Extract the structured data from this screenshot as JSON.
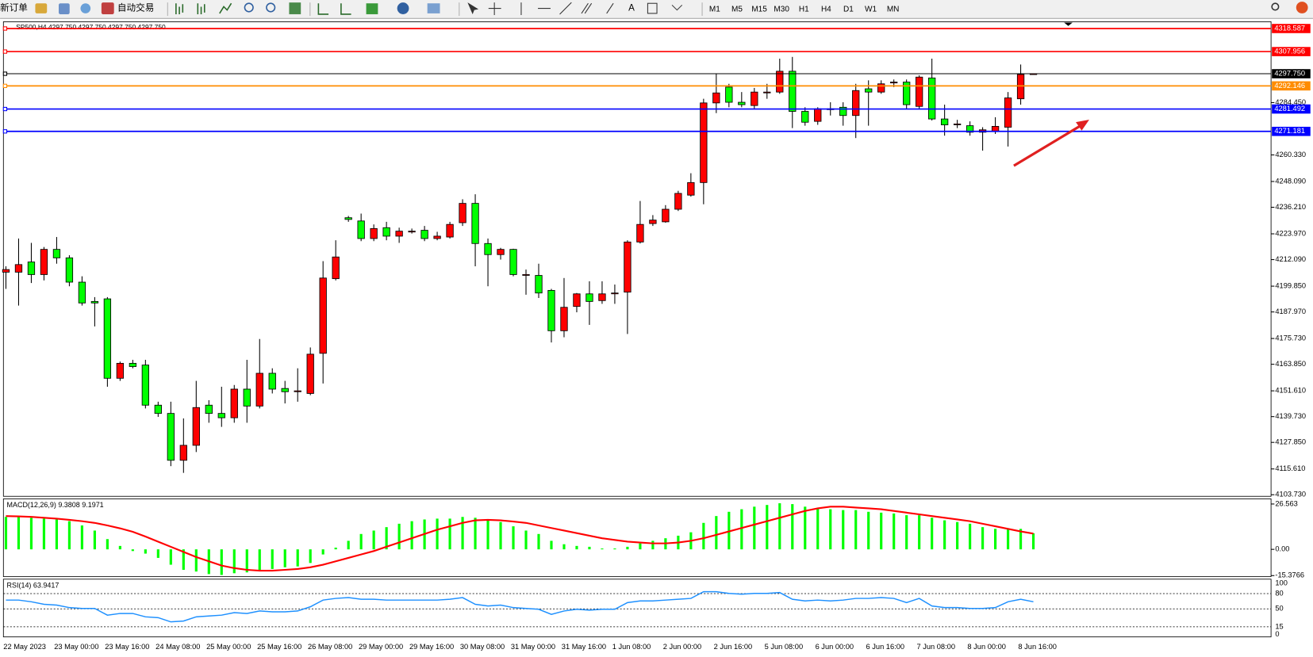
{
  "toolbar": {
    "new_order": "新订单",
    "auto_trading": "自动交易",
    "timeframes": [
      "M1",
      "M5",
      "M15",
      "M30",
      "H1",
      "H4",
      "D1",
      "W1",
      "MN"
    ]
  },
  "chart_data": [
    {
      "type": "candlestick",
      "title": "SP500,H4  4297.750 4297.750 4297.750 4297.750",
      "categories": [
        "22 May 2023",
        null,
        null,
        null,
        "23 May 00:00",
        null,
        null,
        null,
        "23 May 16:00",
        null,
        null,
        null,
        "24 May 08:00",
        null,
        null,
        null,
        "25 May 00:00",
        null,
        null,
        null,
        "25 May 16:00",
        null,
        null,
        null,
        "26 May 08:00",
        null,
        null,
        null,
        "29 May 00:00",
        null,
        null,
        null,
        "29 May 16:00",
        null,
        null,
        null,
        "30 May 08:00",
        null,
        null,
        null,
        "31 May 00:00",
        null,
        null,
        null,
        "31 May 16:00",
        null,
        null,
        null,
        "1 Jun 08:00",
        null,
        null,
        null,
        "2 Jun 00:00",
        null,
        null,
        null,
        "2 Jun 16:00",
        null,
        null,
        null,
        "5 Jun 08:00",
        null,
        null,
        null,
        "6 Jun 00:00",
        null,
        null,
        null,
        "6 Jun 16:00",
        null,
        null,
        null,
        "7 Jun 08:00",
        null,
        null,
        null,
        "8 Jun 00:00",
        null,
        null,
        null,
        "8 Jun 16:00",
        null
      ],
      "open": [
        4206.3,
        4206.3,
        4211.0,
        4205.2,
        4216.8,
        4212.9,
        4201.7,
        4192.8,
        4194.0,
        4157.4,
        4164.3,
        4163.5,
        4145.0,
        4141.2,
        4119.6,
        4126.5,
        4145.0,
        4141.2,
        4139.2,
        4152.4,
        4144.6,
        4159.7,
        4152.7,
        4151.2,
        4150.4,
        4168.9,
        4203.3,
        4231.4,
        4229.9,
        4221.8,
        4226.8,
        4222.9,
        4225.2,
        4225.6,
        4221.8,
        4222.5,
        4229.1,
        4238.0,
        4219.5,
        4214.4,
        4216.8,
        4205.2,
        4204.8,
        4197.9,
        4179.3,
        4190.5,
        4196.3,
        4193.2,
        4196.7,
        4197.1,
        4220.2,
        4228.7,
        4229.5,
        4235.3,
        4241.8,
        4247.6,
        4284.3,
        4291.6,
        4284.6,
        4283.1,
        4289.3,
        4289.3,
        4298.9,
        4280.4,
        4275.8,
        4281.2,
        4282.3,
        4278.5,
        4290.8,
        4289.3,
        4293.5,
        4293.9,
        4282.7,
        4295.8,
        4276.9,
        4274.6,
        4273.8,
        4270.8,
        4271.1,
        4273.1,
        4286.2,
        4297.75
      ],
      "high": [
        4209.0,
        4221.8,
        4219.8,
        4217.9,
        4222.5,
        4214.1,
        4204.4,
        4194.8,
        4194.8,
        4165.1,
        4165.9,
        4165.9,
        4146.6,
        4146.6,
        4138.9,
        4156.2,
        4147.3,
        4153.5,
        4154.3,
        4165.9,
        4175.5,
        4162.0,
        4156.2,
        4162.0,
        4171.6,
        4211.4,
        4221.0,
        4232.2,
        4233.3,
        4228.3,
        4229.5,
        4226.8,
        4226.4,
        4227.6,
        4224.9,
        4229.5,
        4239.9,
        4242.2,
        4221.8,
        4217.5,
        4217.1,
        4207.5,
        4210.2,
        4198.6,
        4203.6,
        4196.7,
        4202.1,
        4202.1,
        4200.6,
        4221.0,
        4239.1,
        4232.6,
        4237.2,
        4243.8,
        4251.9,
        4286.2,
        4297.8,
        4293.1,
        4289.3,
        4291.2,
        4293.1,
        4304.7,
        4305.5,
        4282.3,
        4282.3,
        4284.6,
        4284.6,
        4293.1,
        4294.7,
        4294.7,
        4295.1,
        4295.1,
        4297.0,
        4304.7,
        4283.5,
        4276.5,
        4275.8,
        4273.1,
        4277.7,
        4289.3,
        4302.0,
        4297.75
      ],
      "low": [
        4198.6,
        4190.9,
        4201.3,
        4202.5,
        4210.2,
        4199.8,
        4190.9,
        4181.3,
        4153.5,
        4156.2,
        4162.0,
        4143.5,
        4139.6,
        4116.9,
        4113.8,
        4123.4,
        4136.9,
        4135.0,
        4136.9,
        4136.9,
        4143.5,
        4150.4,
        4145.8,
        4146.6,
        4149.6,
        4155.0,
        4202.5,
        4229.5,
        4220.6,
        4220.6,
        4221.0,
        4219.8,
        4224.1,
        4220.6,
        4221.0,
        4221.8,
        4227.6,
        4209.0,
        4199.8,
        4212.1,
        4204.4,
        4195.9,
        4194.4,
        4173.9,
        4176.3,
        4187.8,
        4182.0,
        4191.7,
        4191.7,
        4177.8,
        4219.5,
        4227.6,
        4229.1,
        4234.5,
        4241.1,
        4237.6,
        4279.6,
        4282.3,
        4282.3,
        4281.6,
        4286.2,
        4288.5,
        4272.7,
        4273.8,
        4274.2,
        4278.5,
        4273.8,
        4268.1,
        4273.8,
        4288.5,
        4291.6,
        4281.6,
        4281.6,
        4276.2,
        4269.2,
        4272.7,
        4269.2,
        4262.3,
        4270.0,
        4264.2,
        4283.5,
        4297.75
      ],
      "close": [
        4207.5,
        4209.8,
        4205.2,
        4216.8,
        4212.9,
        4201.7,
        4192.1,
        4192.1,
        4157.4,
        4164.3,
        4162.8,
        4145.0,
        4141.2,
        4119.6,
        4126.5,
        4143.9,
        4141.2,
        4139.2,
        4152.4,
        4144.6,
        4159.7,
        4152.4,
        4151.2,
        4151.6,
        4168.5,
        4203.6,
        4213.3,
        4230.6,
        4221.8,
        4226.4,
        4222.9,
        4225.2,
        4225.2,
        4221.8,
        4222.9,
        4228.3,
        4238.0,
        4219.5,
        4214.4,
        4216.8,
        4205.2,
        4205.2,
        4196.7,
        4179.3,
        4190.1,
        4196.3,
        4192.8,
        4196.3,
        4196.7,
        4220.2,
        4228.3,
        4230.3,
        4235.3,
        4242.6,
        4247.6,
        4284.3,
        4288.9,
        4284.6,
        4283.5,
        4289.3,
        4289.3,
        4298.9,
        4280.4,
        4275.4,
        4281.6,
        4281.6,
        4278.5,
        4290.0,
        4289.3,
        4293.1,
        4293.9,
        4283.5,
        4296.2,
        4276.9,
        4274.2,
        4274.6,
        4270.8,
        4271.9,
        4273.5,
        4286.6,
        4297.4,
        4297.75
      ],
      "up_color": "#ff0000",
      "down_color": "#00ff00",
      "ylim": [
        4103.0,
        4321.7
      ],
      "yticks": [
        {
          "value": 4103.73,
          "label": "4103.730"
        },
        {
          "value": 4115.61,
          "label": "4115.610"
        },
        {
          "value": 4127.85,
          "label": "4127.850"
        },
        {
          "value": 4139.73,
          "label": "4139.730"
        },
        {
          "value": 4151.61,
          "label": "4151.610"
        },
        {
          "value": 4163.85,
          "label": "4163.850"
        },
        {
          "value": 4175.73,
          "label": "4175.730"
        },
        {
          "value": 4187.97,
          "label": "4187.970"
        },
        {
          "value": 4199.85,
          "label": "4199.850"
        },
        {
          "value": 4212.09,
          "label": "4212.090"
        },
        {
          "value": 4223.97,
          "label": "4223.970"
        },
        {
          "value": 4236.21,
          "label": "4236.210"
        },
        {
          "value": 4248.09,
          "label": "4248.090"
        },
        {
          "value": 4260.33,
          "label": "4260.330"
        },
        {
          "value": 4284.45,
          "label": "4284.450"
        }
      ],
      "hlines": [
        {
          "value": 4318.587,
          "color": "#ff0000"
        },
        {
          "value": 4307.956,
          "color": "#ff0000"
        },
        {
          "value": 4297.75,
          "label": "4297.750",
          "color": "#000000"
        },
        {
          "value": 4292.146,
          "color": "#ff8c00"
        },
        {
          "value": 4281.492,
          "color": "#0000ff"
        },
        {
          "value": 4271.181,
          "color": "#0000ff"
        }
      ]
    },
    {
      "type": "macd",
      "title": "MACD(12,26,9) 9.3808 9.1971",
      "values": [
        19,
        19,
        18.5,
        18,
        17.5,
        16.5,
        14,
        11,
        6,
        2,
        -1,
        -2.5,
        -5,
        -9,
        -12,
        -13,
        -14.5,
        -15,
        -14,
        -13.5,
        -12.5,
        -11.5,
        -10.5,
        -10,
        -8,
        -3,
        1,
        5,
        9,
        11,
        13,
        15,
        16.5,
        17.5,
        18,
        18,
        19,
        18.5,
        17,
        16,
        13.5,
        11,
        9,
        5,
        3,
        2,
        1.5,
        0.5,
        0.5,
        1.5,
        3.5,
        5,
        6.5,
        8,
        10,
        15.5,
        19.5,
        22,
        23.5,
        25,
        26,
        27,
        26.5,
        25,
        24,
        23.5,
        23,
        23,
        22,
        21.5,
        21,
        20,
        20,
        18.5,
        17,
        16,
        15,
        13,
        12,
        12,
        12,
        9.3808
      ],
      "signal": [
        19.5,
        19.3,
        19,
        18.5,
        18,
        17.3,
        16.5,
        15.5,
        14,
        12.3,
        10.3,
        7.5,
        4.5,
        1.5,
        -1.5,
        -4.5,
        -7,
        -9.5,
        -11,
        -12,
        -12.5,
        -12.5,
        -12,
        -11.5,
        -10.5,
        -9,
        -7,
        -5,
        -3,
        -1,
        1.5,
        4,
        6.5,
        9,
        11.5,
        13.5,
        15.5,
        17,
        17.3,
        17,
        16.3,
        15.5,
        14,
        12.5,
        11,
        9.5,
        8,
        6.5,
        5.5,
        4.5,
        4,
        3.5,
        3.5,
        4,
        5,
        6.5,
        8.5,
        10.5,
        12.5,
        14.5,
        16.5,
        18.5,
        20.5,
        22.5,
        24,
        25,
        25,
        24.5,
        24,
        23.5,
        22.5,
        21.5,
        20.5,
        19.5,
        18.5,
        17.5,
        16.5,
        15,
        13.5,
        12,
        10.5,
        9.1971
      ],
      "color": "#00ff00",
      "signal_color": "#ff0000",
      "ylim": [
        -16.0,
        29.6
      ],
      "yticks": [
        -15.3766,
        {
          "value": 0,
          "label": "0.00"
        },
        26.563
      ]
    },
    {
      "type": "line",
      "title": "RSI(14) 63.9417",
      "values": [
        67.2,
        67.2,
        63.9,
        59.0,
        57.4,
        52.5,
        50.8,
        50.8,
        37.7,
        41.0,
        41.0,
        34.4,
        32.8,
        24.6,
        26.2,
        34.4,
        36.1,
        37.7,
        42.6,
        41.0,
        45.9,
        44.3,
        44.3,
        45.9,
        54.1,
        67.2,
        70.5,
        72.1,
        68.9,
        68.9,
        67.2,
        67.2,
        67.2,
        67.2,
        67.2,
        68.9,
        72.1,
        59.0,
        55.7,
        57.4,
        52.5,
        50.8,
        49.2,
        39.3,
        45.9,
        49.2,
        47.5,
        49.2,
        49.2,
        62.3,
        65.6,
        65.6,
        67.2,
        68.9,
        70.5,
        83.6,
        83.6,
        80.3,
        78.7,
        80.3,
        80.3,
        82.0,
        68.9,
        65.6,
        67.2,
        65.6,
        67.2,
        70.5,
        70.5,
        72.1,
        70.5,
        62.3,
        70.5,
        55.7,
        52.5,
        52.5,
        50.8,
        50.8,
        52.5,
        63.9,
        68.9,
        63.9417
      ],
      "color": "#1e90ff",
      "ylim": [
        0,
        100
      ],
      "yticks": [
        0,
        15,
        50,
        80,
        100
      ]
    }
  ]
}
